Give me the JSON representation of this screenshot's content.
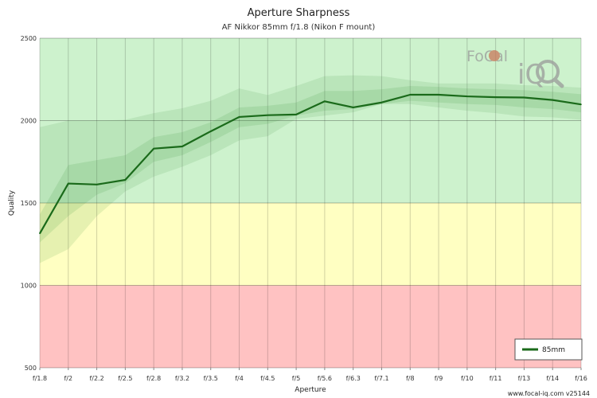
{
  "chart_data": {
    "type": "line",
    "title": "Aperture Sharpness",
    "subtitle": "AF Nikkor 85mm f/1.8 (Nikon F mount)",
    "xlabel": "Aperture",
    "ylabel": "Quality",
    "categories": [
      "f/1.8",
      "f/2",
      "f/2.2",
      "f/2.5",
      "f/2.8",
      "f/3.2",
      "f/3.5",
      "f/4",
      "f/4.5",
      "f/5",
      "f/5.6",
      "f/6.3",
      "f/7.1",
      "f/8",
      "f/9",
      "f/10",
      "f/11",
      "f/13",
      "f/14",
      "f/16"
    ],
    "ylim": [
      500,
      2500
    ],
    "yticks": [
      500,
      1000,
      1500,
      2000,
      2500
    ],
    "grid": true,
    "legend_position": "bottom-right",
    "zones": [
      {
        "from": 500,
        "to": 1000,
        "color": "#ffc2c2"
      },
      {
        "from": 1000,
        "to": 1500,
        "color": "#ffffc2"
      },
      {
        "from": 1500,
        "to": 2500,
        "color": "#cdf2cd"
      }
    ],
    "series": [
      {
        "name": "85mm",
        "color": "#1a6a1a",
        "values": [
          1315,
          1618,
          1612,
          1640,
          1830,
          1843,
          1935,
          2022,
          2033,
          2037,
          2117,
          2080,
          2110,
          2157,
          2157,
          2147,
          2142,
          2140,
          2125,
          2098
        ]
      }
    ],
    "band_outer": {
      "upper": [
        1960,
        2000,
        2000,
        2005,
        2045,
        2075,
        2120,
        2195,
        2155,
        2210,
        2270,
        2275,
        2270,
        2245,
        2225,
        2225,
        2225,
        2215,
        2210,
        2200
      ],
      "lower": [
        1135,
        1220,
        1420,
        1570,
        1660,
        1720,
        1790,
        1880,
        1905,
        2010,
        2030,
        2050,
        2100,
        2100,
        2080,
        2060,
        2045,
        2025,
        2020,
        2005
      ]
    },
    "band_inner": {
      "upper": [
        1430,
        1730,
        1760,
        1790,
        1900,
        1930,
        1990,
        2080,
        2090,
        2110,
        2180,
        2180,
        2190,
        2210,
        2205,
        2195,
        2190,
        2185,
        2175,
        2160
      ],
      "lower": [
        1260,
        1420,
        1550,
        1620,
        1750,
        1790,
        1870,
        1960,
        1980,
        2030,
        2060,
        2070,
        2100,
        2120,
        2110,
        2100,
        2095,
        2080,
        2070,
        2050
      ]
    }
  },
  "footer": "www.focal-iq.com  v25144",
  "logo": {
    "text_top": "FoCal",
    "text_bottom": "iQ"
  }
}
